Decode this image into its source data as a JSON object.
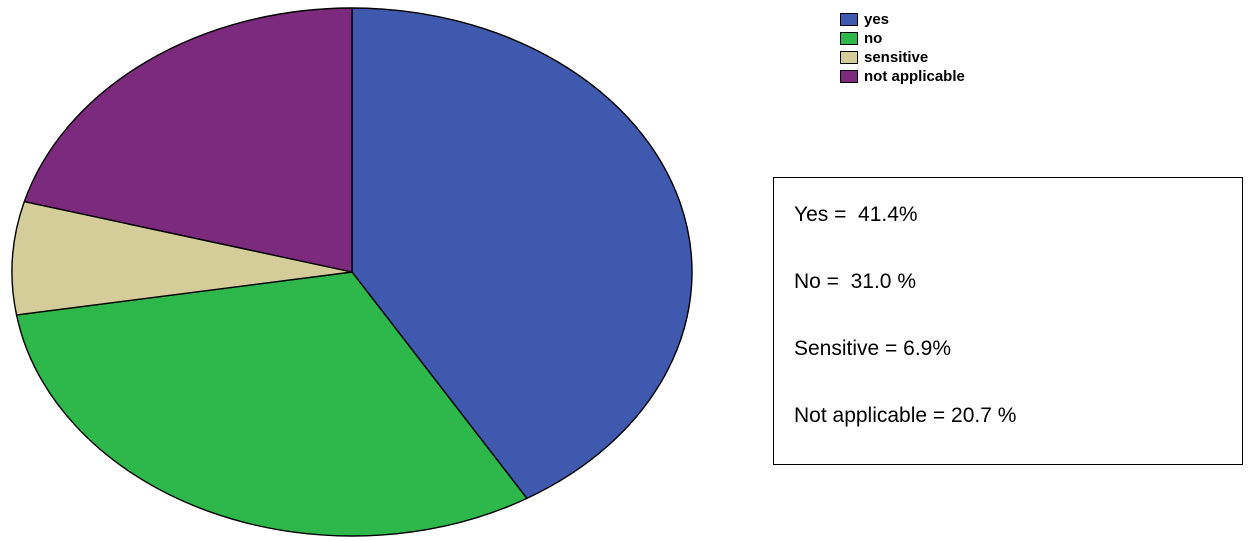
{
  "chart_data": {
    "type": "pie",
    "categories": [
      "yes",
      "no",
      "sensitive",
      "not applicable"
    ],
    "values": [
      41.4,
      31.0,
      6.9,
      20.7
    ],
    "colors": [
      "#3f59ae",
      "#2eb84c",
      "#d4cd9a",
      "#7c2a7d"
    ],
    "start_angle_deg": 0,
    "direction": "clockwise",
    "legend_position": "top-right"
  },
  "summary": {
    "lines": [
      "Yes =  41.4%",
      "No =  31.0 %",
      "Sensitive = 6.9%",
      "Not applicable = 20.7 %"
    ]
  }
}
